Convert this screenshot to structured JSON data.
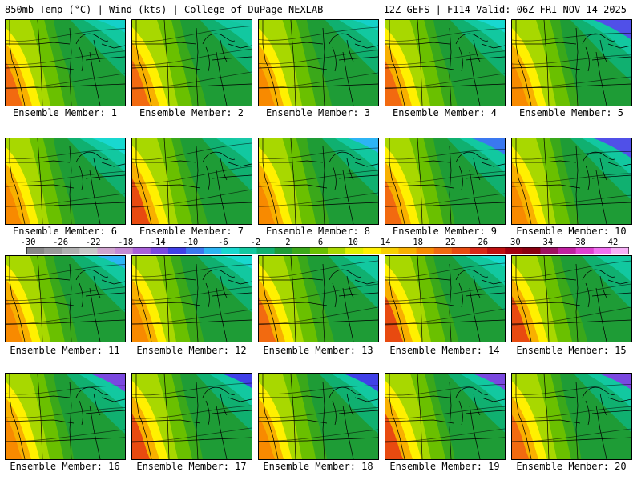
{
  "header": {
    "left": "850mb Temp (°C) | Wind (kts) | College of DuPage NEXLAB",
    "right": "12Z GEFS | F114 Valid: 06Z FRI NOV 14 2025"
  },
  "colorbar": {
    "labels": [
      "-30",
      "-26",
      "-22",
      "-18",
      "-14",
      "-10",
      "-6",
      "-2",
      "2",
      "6",
      "10",
      "14",
      "18",
      "22",
      "26",
      "30",
      "34",
      "38",
      "42"
    ],
    "colors": [
      "#888888",
      "#9a9a9a",
      "#b0b0b0",
      "#c8c8c8",
      "#cfa4cf",
      "#c48ad4",
      "#a860d8",
      "#7a48e0",
      "#4040e8",
      "#3a78f0",
      "#2cb4f4",
      "#18d8d0",
      "#12c8a0",
      "#10b070",
      "#1e9c36",
      "#3aa81a",
      "#6ac000",
      "#a8d800",
      "#e0f000",
      "#fff000",
      "#f8d000",
      "#f8b000",
      "#f88a00",
      "#f06a10",
      "#e84a10",
      "#d82818",
      "#c01010",
      "#a00010",
      "#8a0010",
      "#a01060",
      "#c020a0",
      "#e040d0",
      "#f070f0",
      "#f8b0f8"
    ]
  },
  "panels": [
    {
      "label": "Ensemble Member: 1",
      "warm": 0.55,
      "cold": 0.35,
      "wc": "#f26a10",
      "cc": "#14d0c8"
    },
    {
      "label": "Ensemble Member: 2",
      "warm": 0.6,
      "cold": 0.25,
      "wc": "#f26a10",
      "cc": "#18c8a8"
    },
    {
      "label": "Ensemble Member: 3",
      "warm": 0.45,
      "cold": 0.3,
      "wc": "#f88a00",
      "cc": "#14d0c8"
    },
    {
      "label": "Ensemble Member: 4",
      "warm": 0.55,
      "cold": 0.35,
      "wc": "#f26a10",
      "cc": "#18d8d0"
    },
    {
      "label": "Ensemble Member: 5",
      "warm": 0.5,
      "cold": 0.55,
      "wc": "#f88a00",
      "cc": "#5050e8"
    },
    {
      "label": "Ensemble Member: 6",
      "warm": 0.45,
      "cold": 0.45,
      "wc": "#f88a00",
      "cc": "#18d8d0"
    },
    {
      "label": "Ensemble Member: 7",
      "warm": 0.6,
      "cold": 0.2,
      "wc": "#e84a10",
      "cc": "#18c8a8"
    },
    {
      "label": "Ensemble Member: 8",
      "warm": 0.45,
      "cold": 0.4,
      "wc": "#f88a00",
      "cc": "#2cb4f4"
    },
    {
      "label": "Ensemble Member: 9",
      "warm": 0.5,
      "cold": 0.45,
      "wc": "#f26a10",
      "cc": "#3a78f0"
    },
    {
      "label": "Ensemble Member: 10",
      "warm": 0.5,
      "cold": 0.55,
      "wc": "#f88a00",
      "cc": "#5050e8"
    },
    {
      "label": "Ensemble Member: 11",
      "warm": 0.55,
      "cold": 0.35,
      "wc": "#f88a00",
      "cc": "#2cb4f4"
    },
    {
      "label": "Ensemble Member: 12",
      "warm": 0.5,
      "cold": 0.35,
      "wc": "#f88a00",
      "cc": "#18d8d0"
    },
    {
      "label": "Ensemble Member: 13",
      "warm": 0.55,
      "cold": 0.2,
      "wc": "#f26a10",
      "cc": "#18c8a8"
    },
    {
      "label": "Ensemble Member: 14",
      "warm": 0.6,
      "cold": 0.3,
      "wc": "#e84a10",
      "cc": "#18d8d0"
    },
    {
      "label": "Ensemble Member: 15",
      "warm": 0.6,
      "cold": 0.2,
      "wc": "#e84a10",
      "cc": "#12c8a0"
    },
    {
      "label": "Ensemble Member: 16",
      "warm": 0.5,
      "cold": 0.5,
      "wc": "#f88a00",
      "cc": "#7a48e0"
    },
    {
      "label": "Ensemble Member: 17",
      "warm": 0.6,
      "cold": 0.4,
      "wc": "#e84a10",
      "cc": "#4040e8"
    },
    {
      "label": "Ensemble Member: 18",
      "warm": 0.45,
      "cold": 0.5,
      "wc": "#f88a00",
      "cc": "#4040e8"
    },
    {
      "label": "Ensemble Member: 19",
      "warm": 0.6,
      "cold": 0.45,
      "wc": "#e84a10",
      "cc": "#7a48e0"
    },
    {
      "label": "Ensemble Member: 20",
      "warm": 0.55,
      "cold": 0.45,
      "wc": "#f26a10",
      "cc": "#7a48e0"
    }
  ]
}
